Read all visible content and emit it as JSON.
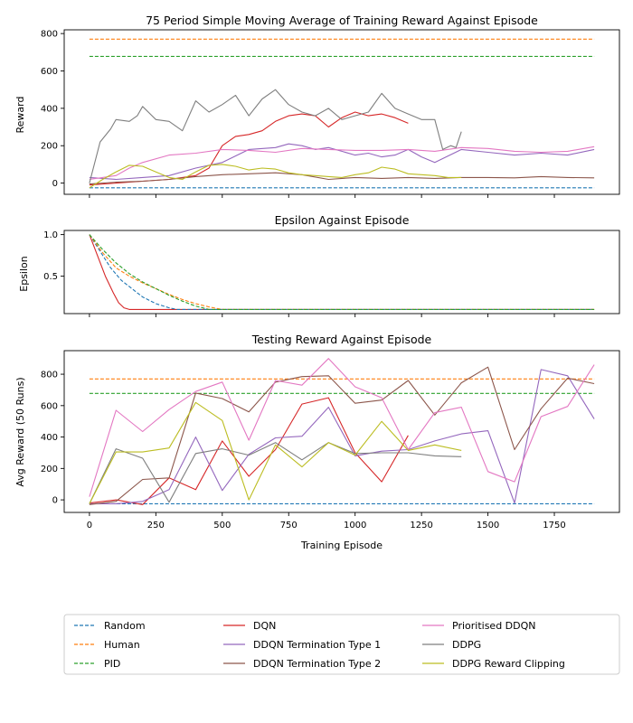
{
  "series_styles": [
    {
      "name": "Random",
      "color": "#1f77b4",
      "dash": true
    },
    {
      "name": "Human",
      "color": "#ff7f0e",
      "dash": true
    },
    {
      "name": "PID",
      "color": "#2ca02c",
      "dash": true
    },
    {
      "name": "DQN",
      "color": "#d62728",
      "dash": false
    },
    {
      "name": "DDQN Termination Type 1",
      "color": "#9467bd",
      "dash": false
    },
    {
      "name": "DDQN Termination Type 2",
      "color": "#8c564b",
      "dash": false
    },
    {
      "name": "Prioritised DDQN",
      "color": "#e377c2",
      "dash": false
    },
    {
      "name": "DDPG",
      "color": "#7f7f7f",
      "dash": false
    },
    {
      "name": "DDPG Reward Clipping",
      "color": "#bcbd22",
      "dash": false
    }
  ],
  "chart_data": [
    {
      "type": "line",
      "title": "75 Period Simple Moving Average of Training Reward Against Episode",
      "xlabel": "",
      "ylabel": "Reward",
      "xlim": [
        -95,
        1995
      ],
      "ylim": [
        -60,
        820
      ],
      "yticks": [
        0,
        200,
        400,
        600,
        800
      ],
      "xticks": [
        0,
        250,
        500,
        750,
        1000,
        1250,
        1500,
        1750
      ],
      "xticklabels": [
        "",
        "",
        "",
        "",
        "",
        "",
        "",
        ""
      ],
      "series": [
        {
          "name": "Random",
          "x": [
            0,
            1900
          ],
          "y": [
            -25,
            -25
          ]
        },
        {
          "name": "Human",
          "x": [
            0,
            1900
          ],
          "y": [
            770,
            770
          ]
        },
        {
          "name": "PID",
          "x": [
            0,
            1900
          ],
          "y": [
            678,
            678
          ]
        },
        {
          "name": "DQN",
          "x": [
            0,
            100,
            200,
            300,
            400,
            450,
            500,
            550,
            600,
            650,
            700,
            750,
            800,
            850,
            900,
            950,
            1000,
            1050,
            1100,
            1150,
            1200
          ],
          "y": [
            -10,
            0,
            10,
            20,
            40,
            80,
            200,
            250,
            260,
            280,
            330,
            360,
            370,
            360,
            300,
            350,
            380,
            360,
            370,
            350,
            320
          ]
        },
        {
          "name": "DDQN Termination Type 1",
          "x": [
            0,
            100,
            200,
            300,
            400,
            500,
            600,
            700,
            750,
            800,
            850,
            900,
            950,
            1000,
            1050,
            1100,
            1150,
            1200,
            1250,
            1300,
            1400,
            1500,
            1600,
            1700,
            1800,
            1900
          ],
          "y": [
            30,
            20,
            30,
            40,
            80,
            110,
            180,
            190,
            210,
            200,
            180,
            190,
            170,
            150,
            160,
            140,
            150,
            180,
            140,
            110,
            180,
            165,
            150,
            160,
            150,
            180
          ]
        },
        {
          "name": "DDQN Termination Type 2",
          "x": [
            0,
            100,
            200,
            300,
            400,
            500,
            600,
            700,
            800,
            900,
            1000,
            1100,
            1200,
            1300,
            1400,
            1500,
            1600,
            1700,
            1800,
            1900
          ],
          "y": [
            -5,
            5,
            10,
            20,
            35,
            45,
            50,
            55,
            45,
            20,
            30,
            25,
            30,
            25,
            30,
            30,
            28,
            35,
            30,
            28
          ]
        },
        {
          "name": "Prioritised DDQN",
          "x": [
            0,
            100,
            150,
            200,
            300,
            400,
            500,
            600,
            700,
            800,
            900,
            1000,
            1100,
            1200,
            1300,
            1400,
            1500,
            1600,
            1700,
            1800,
            1900
          ],
          "y": [
            20,
            40,
            80,
            110,
            150,
            160,
            180,
            175,
            165,
            185,
            180,
            175,
            175,
            180,
            170,
            190,
            185,
            170,
            165,
            170,
            195
          ]
        },
        {
          "name": "DDPG",
          "x": [
            0,
            40,
            80,
            100,
            150,
            180,
            200,
            250,
            300,
            350,
            400,
            450,
            500,
            550,
            600,
            650,
            700,
            750,
            800,
            850,
            900,
            950,
            1000,
            1050,
            1100,
            1150,
            1200,
            1250,
            1300,
            1330,
            1360,
            1380,
            1400
          ],
          "y": [
            0,
            220,
            290,
            340,
            330,
            360,
            410,
            340,
            330,
            280,
            440,
            380,
            420,
            470,
            360,
            450,
            500,
            420,
            380,
            360,
            400,
            340,
            360,
            380,
            480,
            400,
            370,
            340,
            340,
            180,
            200,
            190,
            275
          ]
        },
        {
          "name": "DDPG Reward Clipping",
          "x": [
            0,
            50,
            100,
            150,
            200,
            250,
            300,
            350,
            400,
            450,
            500,
            550,
            600,
            650,
            700,
            750,
            800,
            850,
            900,
            950,
            1000,
            1050,
            1100,
            1150,
            1200,
            1250,
            1300,
            1350,
            1400
          ],
          "y": [
            -25,
            20,
            60,
            95,
            90,
            60,
            30,
            20,
            60,
            95,
            100,
            90,
            70,
            80,
            75,
            55,
            45,
            40,
            35,
            30,
            45,
            55,
            85,
            75,
            50,
            45,
            40,
            30,
            30
          ]
        }
      ]
    },
    {
      "type": "line",
      "title": "Epsilon Against Episode",
      "xlabel": "",
      "ylabel": "Epsilon",
      "xlim": [
        -95,
        1995
      ],
      "ylim": [
        0.05,
        1.05
      ],
      "yticks": [
        0.5,
        1.0
      ],
      "yticklabels": [
        "0.5",
        "1.0"
      ],
      "xticks": [
        0,
        250,
        500,
        750,
        1000,
        1250,
        1500,
        1750
      ],
      "xticklabels": [
        "",
        "",
        "",
        "",
        "",
        "",
        "",
        ""
      ],
      "series": [
        {
          "name": "DQN",
          "x": [
            0,
            30,
            60,
            90,
            110,
            130,
            150,
            1900
          ],
          "y": [
            1.0,
            0.75,
            0.5,
            0.3,
            0.18,
            0.12,
            0.1,
            0.1
          ]
        },
        {
          "name": "Random",
          "x": [
            0,
            40,
            80,
            120,
            160,
            200,
            250,
            300,
            330,
            1900
          ],
          "y": [
            1.0,
            0.8,
            0.6,
            0.45,
            0.35,
            0.25,
            0.17,
            0.12,
            0.1,
            0.1
          ]
        },
        {
          "name": "Human",
          "x": [
            0,
            50,
            100,
            150,
            200,
            250,
            300,
            350,
            400,
            450,
            500,
            1900
          ],
          "y": [
            1.0,
            0.78,
            0.6,
            0.5,
            0.42,
            0.35,
            0.28,
            0.22,
            0.17,
            0.13,
            0.1,
            0.1
          ]
        },
        {
          "name": "PID",
          "x": [
            0,
            50,
            100,
            150,
            200,
            250,
            300,
            350,
            400,
            450,
            1900
          ],
          "y": [
            1.0,
            0.82,
            0.66,
            0.53,
            0.43,
            0.35,
            0.27,
            0.2,
            0.14,
            0.1,
            0.1
          ]
        }
      ]
    },
    {
      "type": "line",
      "title": "Testing Reward Against Episode",
      "xlabel": "Training Episode",
      "ylabel": "Avg Reward (50 Runs)",
      "xlim": [
        -95,
        1995
      ],
      "ylim": [
        -80,
        950
      ],
      "yticks": [
        0,
        200,
        400,
        600,
        800
      ],
      "xticks": [
        0,
        250,
        500,
        750,
        1000,
        1250,
        1500,
        1750
      ],
      "xticklabels": [
        "0",
        "250",
        "500",
        "750",
        "1000",
        "1250",
        "1500",
        "1750"
      ],
      "series": [
        {
          "name": "Random",
          "x": [
            0,
            1900
          ],
          "y": [
            -25,
            -25
          ]
        },
        {
          "name": "Human",
          "x": [
            0,
            1900
          ],
          "y": [
            770,
            770
          ]
        },
        {
          "name": "PID",
          "x": [
            0,
            1900
          ],
          "y": [
            678,
            678
          ]
        },
        {
          "name": "DQN",
          "x": [
            0,
            100,
            200,
            300,
            400,
            500,
            600,
            700,
            800,
            900,
            1000,
            1100,
            1200
          ],
          "y": [
            -20,
            0,
            -30,
            140,
            65,
            375,
            150,
            320,
            610,
            650,
            300,
            115,
            410
          ]
        },
        {
          "name": "DDQN Termination Type 1",
          "x": [
            0,
            100,
            200,
            300,
            400,
            500,
            600,
            700,
            800,
            900,
            1000,
            1100,
            1200,
            1300,
            1400,
            1500,
            1600,
            1700,
            1800,
            1900
          ],
          "y": [
            -25,
            -25,
            -10,
            65,
            400,
            60,
            290,
            395,
            405,
            590,
            280,
            310,
            320,
            375,
            420,
            440,
            -20,
            830,
            790,
            515
          ]
        },
        {
          "name": "DDQN Termination Type 2",
          "x": [
            0,
            100,
            200,
            300,
            400,
            500,
            600,
            700,
            800,
            900,
            1000,
            1100,
            1200,
            1300,
            1400,
            1500,
            1600,
            1700,
            1800,
            1900
          ],
          "y": [
            -30,
            -10,
            130,
            140,
            680,
            645,
            560,
            750,
            785,
            790,
            615,
            635,
            760,
            540,
            745,
            845,
            320,
            580,
            775,
            740
          ]
        },
        {
          "name": "Prioritised DDQN",
          "x": [
            0,
            100,
            200,
            300,
            400,
            500,
            600,
            700,
            800,
            900,
            1000,
            1100,
            1200,
            1300,
            1400,
            1500,
            1600,
            1700,
            1800,
            1900
          ],
          "y": [
            20,
            570,
            435,
            575,
            690,
            750,
            380,
            760,
            730,
            900,
            720,
            650,
            320,
            555,
            590,
            180,
            115,
            530,
            595,
            860
          ]
        },
        {
          "name": "DDPG",
          "x": [
            0,
            100,
            200,
            300,
            400,
            500,
            600,
            700,
            800,
            900,
            1000,
            1100,
            1200,
            1300,
            1400
          ],
          "y": [
            -25,
            325,
            265,
            -15,
            295,
            325,
            285,
            365,
            255,
            365,
            295,
            300,
            300,
            280,
            275
          ]
        },
        {
          "name": "DDPG Reward Clipping",
          "x": [
            0,
            100,
            200,
            300,
            400,
            500,
            600,
            700,
            800,
            900,
            1000,
            1100,
            1200,
            1300,
            1400
          ],
          "y": [
            -25,
            305,
            305,
            330,
            620,
            505,
            0,
            350,
            210,
            365,
            285,
            500,
            315,
            350,
            315
          ]
        }
      ]
    }
  ]
}
